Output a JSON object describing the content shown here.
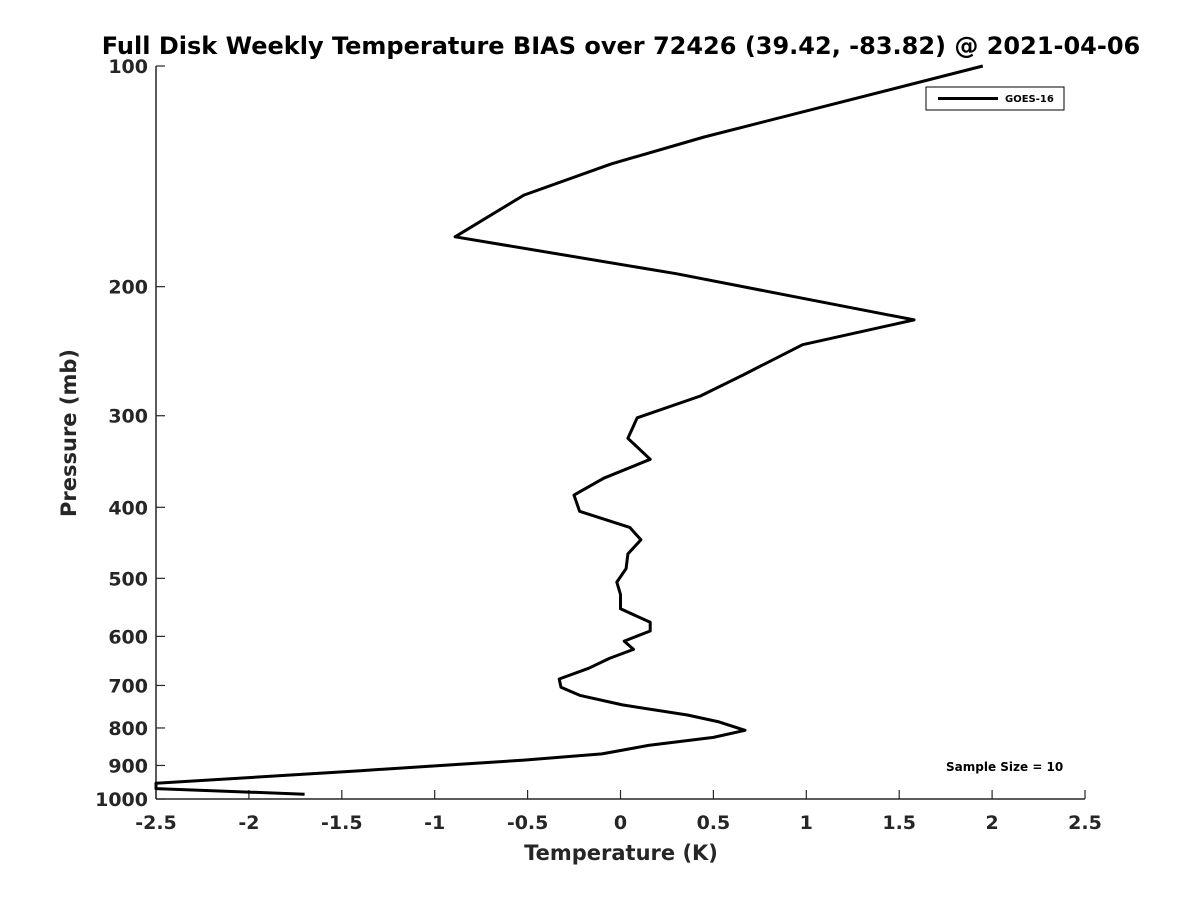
{
  "chart_data": {
    "type": "line",
    "title": "Full Disk Weekly Temperature BIAS over 72426 (39.42, -83.82) @ 2021-04-06",
    "xlabel": "Temperature (K)",
    "ylabel": "Pressure (mb)",
    "xlim": [
      -2.5,
      2.5
    ],
    "ylim": [
      100,
      1000
    ],
    "yscale": "log",
    "y_reversed": true,
    "x_ticks": [
      "-2.5",
      "-2",
      "-1.5",
      "-1",
      "-0.5",
      "0",
      "0.5",
      "1",
      "1.5",
      "2",
      "2.5"
    ],
    "y_ticks": [
      "100",
      "200",
      "300",
      "400",
      "500",
      "600",
      "700",
      "800",
      "900",
      "1000"
    ],
    "grid": false,
    "legend": {
      "position": "top-right",
      "entries": [
        "GOES-16"
      ]
    },
    "annotation": "Sample Size = 10",
    "series": [
      {
        "name": "GOES-16",
        "color": "#000000",
        "points": [
          [
            1.95,
            100
          ],
          [
            0.45,
            125
          ],
          [
            -0.05,
            136
          ],
          [
            -0.52,
            150
          ],
          [
            -0.89,
            171
          ],
          [
            0.3,
            192
          ],
          [
            1.58,
            222
          ],
          [
            0.98,
            240
          ],
          [
            0.66,
            264
          ],
          [
            0.43,
            282
          ],
          [
            0.09,
            302
          ],
          [
            0.04,
            322
          ],
          [
            0.16,
            344
          ],
          [
            -0.09,
            365
          ],
          [
            -0.25,
            385
          ],
          [
            -0.22,
            405
          ],
          [
            0.05,
            426
          ],
          [
            0.11,
            443
          ],
          [
            0.04,
            463
          ],
          [
            0.03,
            485
          ],
          [
            -0.02,
            506
          ],
          [
            0.0,
            526
          ],
          [
            0.0,
            550
          ],
          [
            0.16,
            574
          ],
          [
            0.16,
            590
          ],
          [
            0.02,
            609
          ],
          [
            0.07,
            625
          ],
          [
            -0.06,
            643
          ],
          [
            -0.17,
            663
          ],
          [
            -0.33,
            686
          ],
          [
            -0.32,
            704
          ],
          [
            -0.22,
            722
          ],
          [
            0.01,
            744
          ],
          [
            0.36,
            768
          ],
          [
            0.53,
            785
          ],
          [
            0.67,
            806
          ],
          [
            0.5,
            824
          ],
          [
            0.15,
            845
          ],
          [
            -0.1,
            868
          ],
          [
            -0.52,
            885
          ],
          [
            -1.4,
            915
          ],
          [
            -2.5,
            952
          ],
          [
            -2.5,
            968
          ],
          [
            -1.7,
            985
          ]
        ]
      }
    ]
  }
}
